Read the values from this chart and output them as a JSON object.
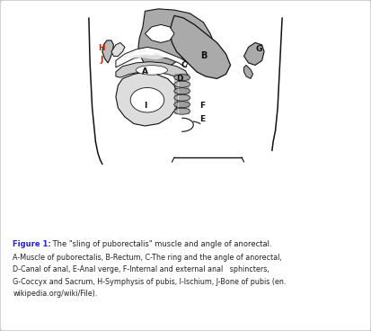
{
  "title_bold": "Figure 1:",
  "title_rest": " The \"sling of puborectalis\" muscle and angle of anorectal.",
  "caption_line2": "A-Muscle of puborectalis, B-Rectum, C-The ring and the angle of anorectal,",
  "caption_line3": "D-Canal of anal, E-Anal verge, F-Internal and external anal   sphincters,",
  "caption_line4": "G-Coccyx and Sacrum, H-Symphysis of pubis, I-Ischium, J-Bone of pubis (en.",
  "caption_line5": "wikipedia.org/wiki/File).",
  "bg_color": "#ffffff",
  "border_color": "#c0c0c0",
  "label_color_red": "#cc2200",
  "label_color_black": "#111111",
  "gray_dark": "#888888",
  "gray_medium": "#aaaaaa",
  "gray_light": "#bbbbbb",
  "gray_lighter": "#cccccc",
  "gray_lightest": "#dddddd",
  "white": "#ffffff",
  "caption_title_color": "#2222cc",
  "caption_text_color": "#222222"
}
